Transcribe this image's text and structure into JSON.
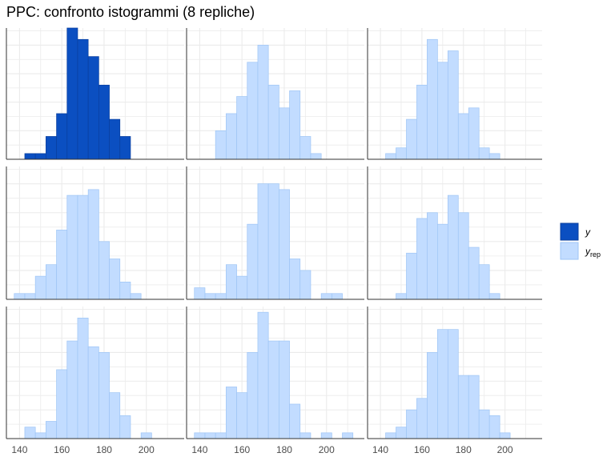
{
  "chart_data": {
    "type": "bar",
    "title": "PPC: confronto istogrammi (8 repliche)",
    "xlabel": "",
    "ylabel": "",
    "xlim": [
      133.8,
      217.9
    ],
    "ylim": [
      0,
      23
    ],
    "x_ticks": [
      "140",
      "160",
      "180",
      "200"
    ],
    "x_tick_values": [
      140,
      160,
      180,
      200
    ],
    "binwidth": 5,
    "grid": true,
    "legend": {
      "position": "right",
      "entries": [
        {
          "label": "y",
          "subscript": "",
          "color": "#0b4fc1"
        },
        {
          "label": "y",
          "subscript": "rep",
          "color": "#c2dcff"
        }
      ]
    },
    "colors": {
      "y_fill": "#0b4fc1",
      "y_stroke": "#0a3f9e",
      "yrep_fill": "#c2dcff",
      "yrep_stroke": "#9ec5f5"
    },
    "panels": [
      {
        "series": "y",
        "bin_start": 142.5,
        "counts": [
          1,
          1,
          4,
          8,
          23,
          21,
          18,
          13,
          7,
          4
        ]
      },
      {
        "series": "yrep",
        "bin_start": 147.5,
        "counts": [
          5,
          8,
          11,
          17,
          20,
          13,
          9,
          12,
          4,
          1
        ]
      },
      {
        "series": "yrep",
        "bin_start": 142.5,
        "counts": [
          1,
          2,
          7,
          13,
          21,
          17,
          19,
          8,
          9,
          2,
          1
        ]
      },
      {
        "series": "yrep",
        "bin_start": 137.5,
        "counts": [
          1,
          1,
          4,
          6,
          12,
          18,
          18,
          19,
          10,
          7,
          3,
          1
        ]
      },
      {
        "series": "yrep",
        "bin_start": 137.5,
        "counts": [
          2,
          1,
          1,
          6,
          4,
          13,
          20,
          20,
          19,
          7,
          5,
          0,
          1,
          1
        ]
      },
      {
        "series": "yrep",
        "bin_start": 147.5,
        "counts": [
          1,
          8,
          14,
          15,
          13,
          18,
          15,
          9,
          6,
          1
        ]
      },
      {
        "series": "yrep",
        "bin_start": 142.5,
        "counts": [
          2,
          1,
          3,
          12,
          17,
          21,
          16,
          15,
          8,
          4,
          0,
          1
        ]
      },
      {
        "series": "yrep",
        "bin_start": 137.5,
        "counts": [
          1,
          1,
          1,
          9,
          8,
          15,
          22,
          17,
          17,
          6,
          1,
          0,
          1,
          0,
          1
        ]
      },
      {
        "series": "yrep",
        "bin_start": 142.5,
        "counts": [
          1,
          2,
          5,
          7,
          15,
          19,
          19,
          11,
          11,
          5,
          4,
          1
        ]
      }
    ]
  }
}
